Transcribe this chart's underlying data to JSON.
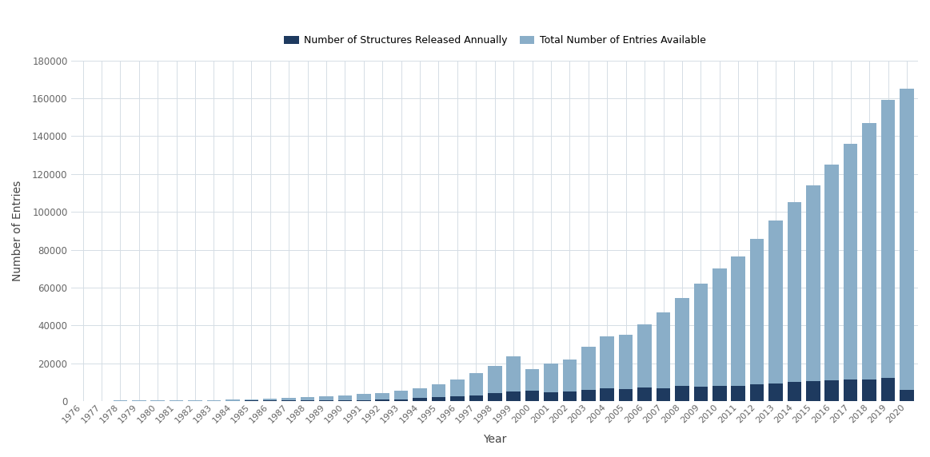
{
  "years": [
    1976,
    1977,
    1978,
    1979,
    1980,
    1981,
    1982,
    1983,
    1984,
    1985,
    1986,
    1987,
    1988,
    1989,
    1990,
    1991,
    1992,
    1993,
    1994,
    1995,
    1996,
    1997,
    1998,
    1999,
    2000,
    2001,
    2002,
    2003,
    2004,
    2005,
    2006,
    2007,
    2008,
    2009,
    2010,
    2011,
    2012,
    2013,
    2014,
    2015,
    2016,
    2017,
    2018,
    2019,
    2020
  ],
  "annual_released": [
    116,
    61,
    37,
    29,
    67,
    55,
    97,
    136,
    185,
    218,
    225,
    311,
    406,
    507,
    523,
    621,
    784,
    1014,
    1523,
    2126,
    2541,
    3021,
    4046,
    5182,
    5384,
    4599,
    5164,
    5954,
    6632,
    6183,
    7099,
    6855,
    7918,
    7560,
    7843,
    8193,
    8826,
    9473,
    10190,
    10584,
    10900,
    11211,
    11311,
    12428,
    6000
  ],
  "total_available": [
    116,
    177,
    214,
    243,
    310,
    365,
    462,
    598,
    783,
    1001,
    1226,
    1537,
    1943,
    2450,
    2973,
    3594,
    4378,
    5392,
    6915,
    9041,
    11582,
    14603,
    18649,
    23831,
    17000,
    19800,
    22000,
    28700,
    34300,
    35200,
    40400,
    47000,
    54500,
    62000,
    70000,
    76500,
    85500,
    95500,
    105000,
    114000,
    125000,
    136000,
    147000,
    159000,
    165000
  ],
  "bar_color_annual": "#1e3a5f",
  "bar_color_total": "#8aaec8",
  "background_color": "#ffffff",
  "grid_color": "#d5dde5",
  "xlabel": "Year",
  "ylabel": "Number of Entries",
  "ylim": [
    0,
    180000
  ],
  "yticks": [
    0,
    20000,
    40000,
    60000,
    80000,
    100000,
    120000,
    140000,
    160000,
    180000
  ],
  "legend_annual": "Number of Structures Released Annually",
  "legend_total": "Total Number of Entries Available"
}
